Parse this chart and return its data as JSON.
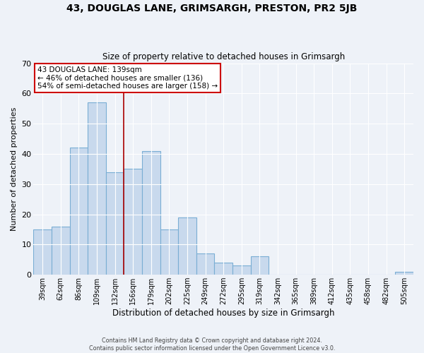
{
  "title": "43, DOUGLAS LANE, GRIMSARGH, PRESTON, PR2 5JB",
  "subtitle": "Size of property relative to detached houses in Grimsargh",
  "xlabel": "Distribution of detached houses by size in Grimsargh",
  "ylabel": "Number of detached properties",
  "bar_labels": [
    "39sqm",
    "62sqm",
    "86sqm",
    "109sqm",
    "132sqm",
    "156sqm",
    "179sqm",
    "202sqm",
    "225sqm",
    "249sqm",
    "272sqm",
    "295sqm",
    "319sqm",
    "342sqm",
    "365sqm",
    "389sqm",
    "412sqm",
    "435sqm",
    "458sqm",
    "482sqm",
    "505sqm"
  ],
  "bar_values": [
    15,
    16,
    42,
    57,
    34,
    35,
    41,
    15,
    19,
    7,
    4,
    3,
    6,
    0,
    0,
    0,
    0,
    0,
    0,
    0,
    1
  ],
  "bar_color": "#c8d9ed",
  "bar_edge_color": "#7aaed4",
  "ylim": [
    0,
    70
  ],
  "yticks": [
    0,
    10,
    20,
    30,
    40,
    50,
    60,
    70
  ],
  "vline_x": 4.5,
  "vline_color": "#aa0000",
  "annotation_title": "43 DOUGLAS LANE: 139sqm",
  "annotation_line1": "← 46% of detached houses are smaller (136)",
  "annotation_line2": "54% of semi-detached houses are larger (158) →",
  "annotation_box_color": "#ffffff",
  "annotation_box_edge": "#cc0000",
  "footer1": "Contains HM Land Registry data © Crown copyright and database right 2024.",
  "footer2": "Contains public sector information licensed under the Open Government Licence v3.0.",
  "background_color": "#eef2f8"
}
